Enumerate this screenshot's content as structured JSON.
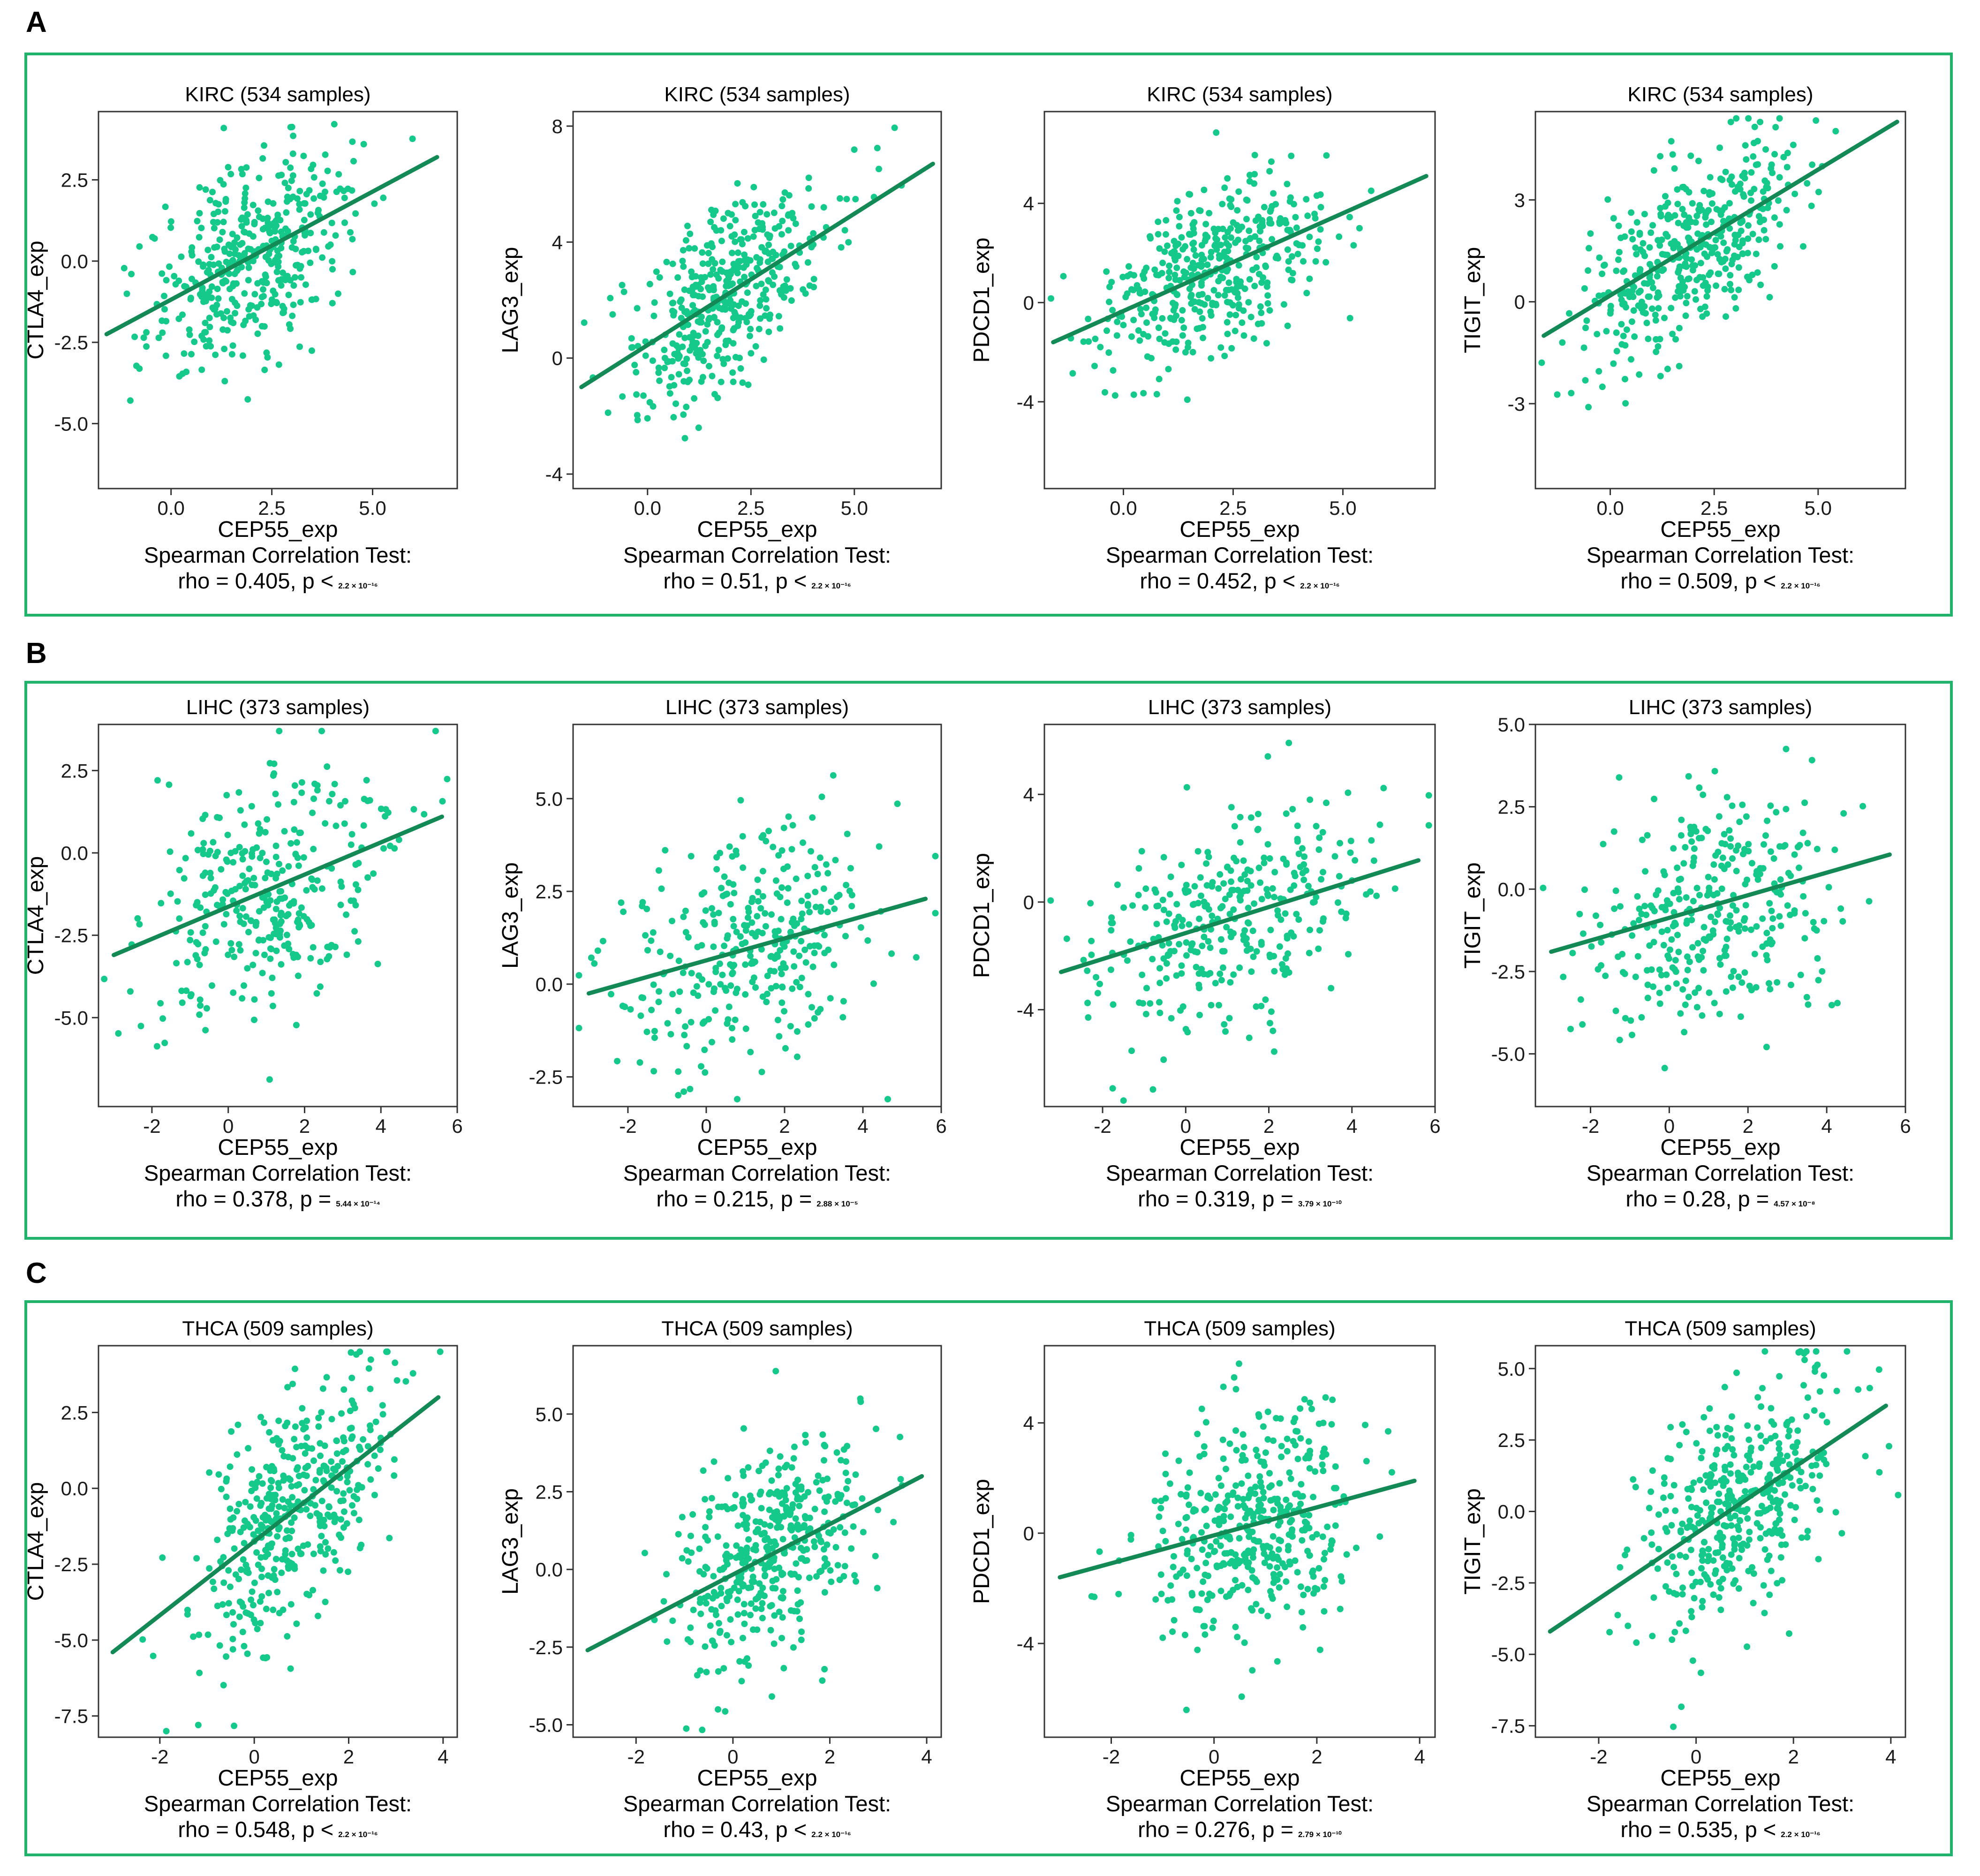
{
  "figure": {
    "panels": [
      {
        "label": "A",
        "dataset": "KIRC",
        "title": "KIRC (534 samples)",
        "n_points": 420
      },
      {
        "label": "B",
        "dataset": "LIHC",
        "title": "LIHC (373 samples)",
        "n_points": 330
      },
      {
        "label": "C",
        "dataset": "THCA",
        "title": "THCA (509 samples)",
        "n_points": 420
      }
    ],
    "test_label": "Spearman Correlation Test:",
    "point_color": "#14c98a",
    "line_color": "#138a55",
    "frame_color": "#21b36b"
  },
  "chart_data": [
    {
      "type": "scatter",
      "panel": "A",
      "title": "KIRC (534 samples)",
      "xlabel": "CEP55_exp",
      "ylabel": "CTLA4_exp",
      "xlim": [
        -1.8,
        7.1
      ],
      "ylim": [
        -7.0,
        4.6
      ],
      "xticks": [
        0,
        2.5,
        5
      ],
      "xtick_labels": [
        "0.0",
        "2.5",
        "5.0"
      ],
      "yticks": [
        -5,
        -2.5,
        0,
        2.5
      ],
      "ytick_labels": [
        "-5.0",
        "-2.5",
        "0.0",
        "2.5"
      ],
      "regression_line": [
        [
          -1.6,
          -2.25
        ],
        [
          6.6,
          3.2
        ]
      ],
      "point_center": [
        2.0,
        0.0
      ],
      "point_spread": [
        1.25,
        1.6
      ],
      "rho": "0.405",
      "p_op": "<",
      "p_value": "2.2 × 10⁻¹⁶"
    },
    {
      "type": "scatter",
      "panel": "A",
      "title": "KIRC (534 samples)",
      "xlabel": "CEP55_exp",
      "ylabel": "LAG3_exp",
      "xlim": [
        -1.8,
        7.1
      ],
      "ylim": [
        -4.5,
        8.5
      ],
      "xticks": [
        0,
        2.5,
        5
      ],
      "xtick_labels": [
        "0.0",
        "2.5",
        "5.0"
      ],
      "yticks": [
        -4,
        0,
        4,
        8
      ],
      "ytick_labels": [
        "-4",
        "0",
        "4",
        "8"
      ],
      "regression_line": [
        [
          -1.6,
          -1.0
        ],
        [
          6.9,
          6.7
        ]
      ],
      "point_center": [
        2.0,
        2.0
      ],
      "point_spread": [
        1.25,
        1.8
      ],
      "rho": "0.51",
      "p_op": "<",
      "p_value": "2.2 × 10⁻¹⁶"
    },
    {
      "type": "scatter",
      "panel": "A",
      "title": "KIRC (534 samples)",
      "xlabel": "CEP55_exp",
      "ylabel": "PDCD1_exp",
      "xlim": [
        -1.8,
        7.1
      ],
      "ylim": [
        -7.5,
        7.7
      ],
      "xticks": [
        0,
        2.5,
        5
      ],
      "xtick_labels": [
        "0.0",
        "2.5",
        "5.0"
      ],
      "yticks": [
        -4,
        0,
        4
      ],
      "ytick_labels": [
        "-4",
        "0",
        "4"
      ],
      "regression_line": [
        [
          -1.6,
          -1.6
        ],
        [
          6.9,
          5.1
        ]
      ],
      "point_center": [
        2.0,
        1.0
      ],
      "point_spread": [
        1.25,
        1.9
      ],
      "rho": "0.452",
      "p_op": "<",
      "p_value": "2.2 × 10⁻¹⁶"
    },
    {
      "type": "scatter",
      "panel": "A",
      "title": "KIRC (534 samples)",
      "xlabel": "CEP55_exp",
      "ylabel": "TIGIT_exp",
      "xlim": [
        -1.8,
        7.1
      ],
      "ylim": [
        -5.5,
        5.6
      ],
      "xticks": [
        0,
        2.5,
        5
      ],
      "xtick_labels": [
        "0.0",
        "2.5",
        "5.0"
      ],
      "yticks": [
        -3,
        0,
        3
      ],
      "ytick_labels": [
        "-3",
        "0",
        "3"
      ],
      "regression_line": [
        [
          -1.6,
          -1.0
        ],
        [
          6.9,
          5.3
        ]
      ],
      "point_center": [
        2.0,
        1.5
      ],
      "point_spread": [
        1.25,
        1.5
      ],
      "rho": "0.509",
      "p_op": "<",
      "p_value": "2.2 × 10⁻¹⁶"
    },
    {
      "type": "scatter",
      "panel": "B",
      "title": "LIHC (373 samples)",
      "xlabel": "CEP55_exp",
      "ylabel": "CTLA4_exp",
      "xlim": [
        -3.4,
        6.0
      ],
      "ylim": [
        -7.7,
        3.9
      ],
      "xticks": [
        -2,
        0,
        2,
        4,
        6
      ],
      "xtick_labels": [
        "-2",
        "0",
        "2",
        "4",
        "6"
      ],
      "yticks": [
        -5,
        -2.5,
        0,
        2.5
      ],
      "ytick_labels": [
        "-5.0",
        "-2.5",
        "0.0",
        "2.5"
      ],
      "regression_line": [
        [
          -3.0,
          -3.1
        ],
        [
          5.6,
          1.1
        ]
      ],
      "point_center": [
        1.0,
        -1.0
      ],
      "point_spread": [
        1.6,
        2.0
      ],
      "rho": "0.378",
      "p_op": "=",
      "p_value": "5.44 × 10⁻¹⁴"
    },
    {
      "type": "scatter",
      "panel": "B",
      "title": "LIHC (373 samples)",
      "xlabel": "CEP55_exp",
      "ylabel": "LAG3_exp",
      "xlim": [
        -3.4,
        6.0
      ],
      "ylim": [
        -3.3,
        7.0
      ],
      "xticks": [
        -2,
        0,
        2,
        4,
        6
      ],
      "xtick_labels": [
        "-2",
        "0",
        "2",
        "4",
        "6"
      ],
      "yticks": [
        -2.5,
        0,
        2.5,
        5
      ],
      "ytick_labels": [
        "-2.5",
        "0.0",
        "2.5",
        "5.0"
      ],
      "regression_line": [
        [
          -3.0,
          -0.25
        ],
        [
          5.6,
          2.3
        ]
      ],
      "point_center": [
        1.0,
        0.8
      ],
      "point_spread": [
        1.6,
        1.6
      ],
      "rho": "0.215",
      "p_op": "=",
      "p_value": "2.88 × 10⁻⁵"
    },
    {
      "type": "scatter",
      "panel": "B",
      "title": "LIHC (373 samples)",
      "xlabel": "CEP55_exp",
      "ylabel": "PDCD1_exp",
      "xlim": [
        -3.4,
        6.0
      ],
      "ylim": [
        -7.6,
        6.6
      ],
      "xticks": [
        -2,
        0,
        2,
        4,
        6
      ],
      "xtick_labels": [
        "-2",
        "0",
        "2",
        "4",
        "6"
      ],
      "yticks": [
        -4,
        0,
        4
      ],
      "ytick_labels": [
        "-4",
        "0",
        "4"
      ],
      "regression_line": [
        [
          -3.0,
          -2.6
        ],
        [
          5.6,
          1.55
        ]
      ],
      "point_center": [
        1.0,
        -0.5
      ],
      "point_spread": [
        1.6,
        2.0
      ],
      "rho": "0.319",
      "p_op": "=",
      "p_value": "3.79 × 10⁻¹⁰"
    },
    {
      "type": "scatter",
      "panel": "B",
      "title": "LIHC (373 samples)",
      "xlabel": "CEP55_exp",
      "ylabel": "TIGIT_exp",
      "xlim": [
        -3.4,
        6.0
      ],
      "ylim": [
        -6.6,
        5.0
      ],
      "xticks": [
        -2,
        0,
        2,
        4,
        6
      ],
      "xtick_labels": [
        "-2",
        "0",
        "2",
        "4",
        "6"
      ],
      "yticks": [
        -5,
        -2.5,
        0,
        2.5,
        5
      ],
      "ytick_labels": [
        "-5.0",
        "-2.5",
        "0.0",
        "2.5",
        "5.0"
      ],
      "regression_line": [
        [
          -3.0,
          -1.9
        ],
        [
          5.6,
          1.05
        ]
      ],
      "point_center": [
        1.0,
        -0.4
      ],
      "point_spread": [
        1.6,
        1.9
      ],
      "rho": "0.28",
      "p_op": "=",
      "p_value": "4.57 × 10⁻⁸"
    },
    {
      "type": "scatter",
      "panel": "C",
      "title": "THCA (509 samples)",
      "xlabel": "CEP55_exp",
      "ylabel": "CTLA4_exp",
      "xlim": [
        -3.3,
        4.3
      ],
      "ylim": [
        -8.2,
        4.7
      ],
      "xticks": [
        -2,
        0,
        2,
        4
      ],
      "xtick_labels": [
        "-2",
        "0",
        "2",
        "4"
      ],
      "yticks": [
        -7.5,
        -5,
        -2.5,
        0,
        2.5
      ],
      "ytick_labels": [
        "-7.5",
        "-5.0",
        "-2.5",
        "0.0",
        "2.5"
      ],
      "regression_line": [
        [
          -3.0,
          -5.4
        ],
        [
          3.9,
          3.0
        ]
      ],
      "point_center": [
        0.8,
        -0.8
      ],
      "point_spread": [
        1.0,
        2.4
      ],
      "rho": "0.548",
      "p_op": "<",
      "p_value": "2.2 × 10⁻¹⁶"
    },
    {
      "type": "scatter",
      "panel": "C",
      "title": "THCA (509 samples)",
      "xlabel": "CEP55_exp",
      "ylabel": "LAG3_exp",
      "xlim": [
        -3.3,
        4.3
      ],
      "ylim": [
        -5.4,
        7.2
      ],
      "xticks": [
        -2,
        0,
        2,
        4
      ],
      "xtick_labels": [
        "-2",
        "0",
        "2",
        "4"
      ],
      "yticks": [
        -5,
        -2.5,
        0,
        2.5,
        5
      ],
      "ytick_labels": [
        "-5.0",
        "-2.5",
        "0.0",
        "2.5",
        "5.0"
      ],
      "regression_line": [
        [
          -3.0,
          -2.6
        ],
        [
          3.9,
          3.0
        ]
      ],
      "point_center": [
        0.8,
        0.0
      ],
      "point_spread": [
        1.0,
        1.8
      ],
      "rho": "0.43",
      "p_op": "<",
      "p_value": "2.2 × 10⁻¹⁶"
    },
    {
      "type": "scatter",
      "panel": "C",
      "title": "THCA (509 samples)",
      "xlabel": "CEP55_exp",
      "ylabel": "PDCD1_exp",
      "xlim": [
        -3.3,
        4.3
      ],
      "ylim": [
        -7.4,
        6.8
      ],
      "xticks": [
        -2,
        0,
        2,
        4
      ],
      "xtick_labels": [
        "-2",
        "0",
        "2",
        "4"
      ],
      "yticks": [
        -4,
        0,
        4
      ],
      "ytick_labels": [
        "-4",
        "0",
        "4"
      ],
      "regression_line": [
        [
          -3.0,
          -1.6
        ],
        [
          3.9,
          1.9
        ]
      ],
      "point_center": [
        0.8,
        0.2
      ],
      "point_spread": [
        1.0,
        2.0
      ],
      "rho": "0.276",
      "p_op": "=",
      "p_value": "2.79 × 10⁻¹⁰"
    },
    {
      "type": "scatter",
      "panel": "C",
      "title": "THCA (509 samples)",
      "xlabel": "CEP55_exp",
      "ylabel": "TIGIT_exp",
      "xlim": [
        -3.3,
        4.3
      ],
      "ylim": [
        -7.9,
        5.8
      ],
      "xticks": [
        -2,
        0,
        2,
        4
      ],
      "xtick_labels": [
        "-2",
        "0",
        "2",
        "4"
      ],
      "yticks": [
        -7.5,
        -5,
        -2.5,
        0,
        2.5,
        5
      ],
      "ytick_labels": [
        "-7.5",
        "-5.0",
        "-2.5",
        "0.0",
        "2.5",
        "5.0"
      ],
      "regression_line": [
        [
          -3.0,
          -4.2
        ],
        [
          3.9,
          3.7
        ]
      ],
      "point_center": [
        0.8,
        0.3
      ],
      "point_spread": [
        1.0,
        2.2
      ],
      "rho": "0.535",
      "p_op": "<",
      "p_value": "2.2 × 10⁻¹⁶"
    }
  ]
}
